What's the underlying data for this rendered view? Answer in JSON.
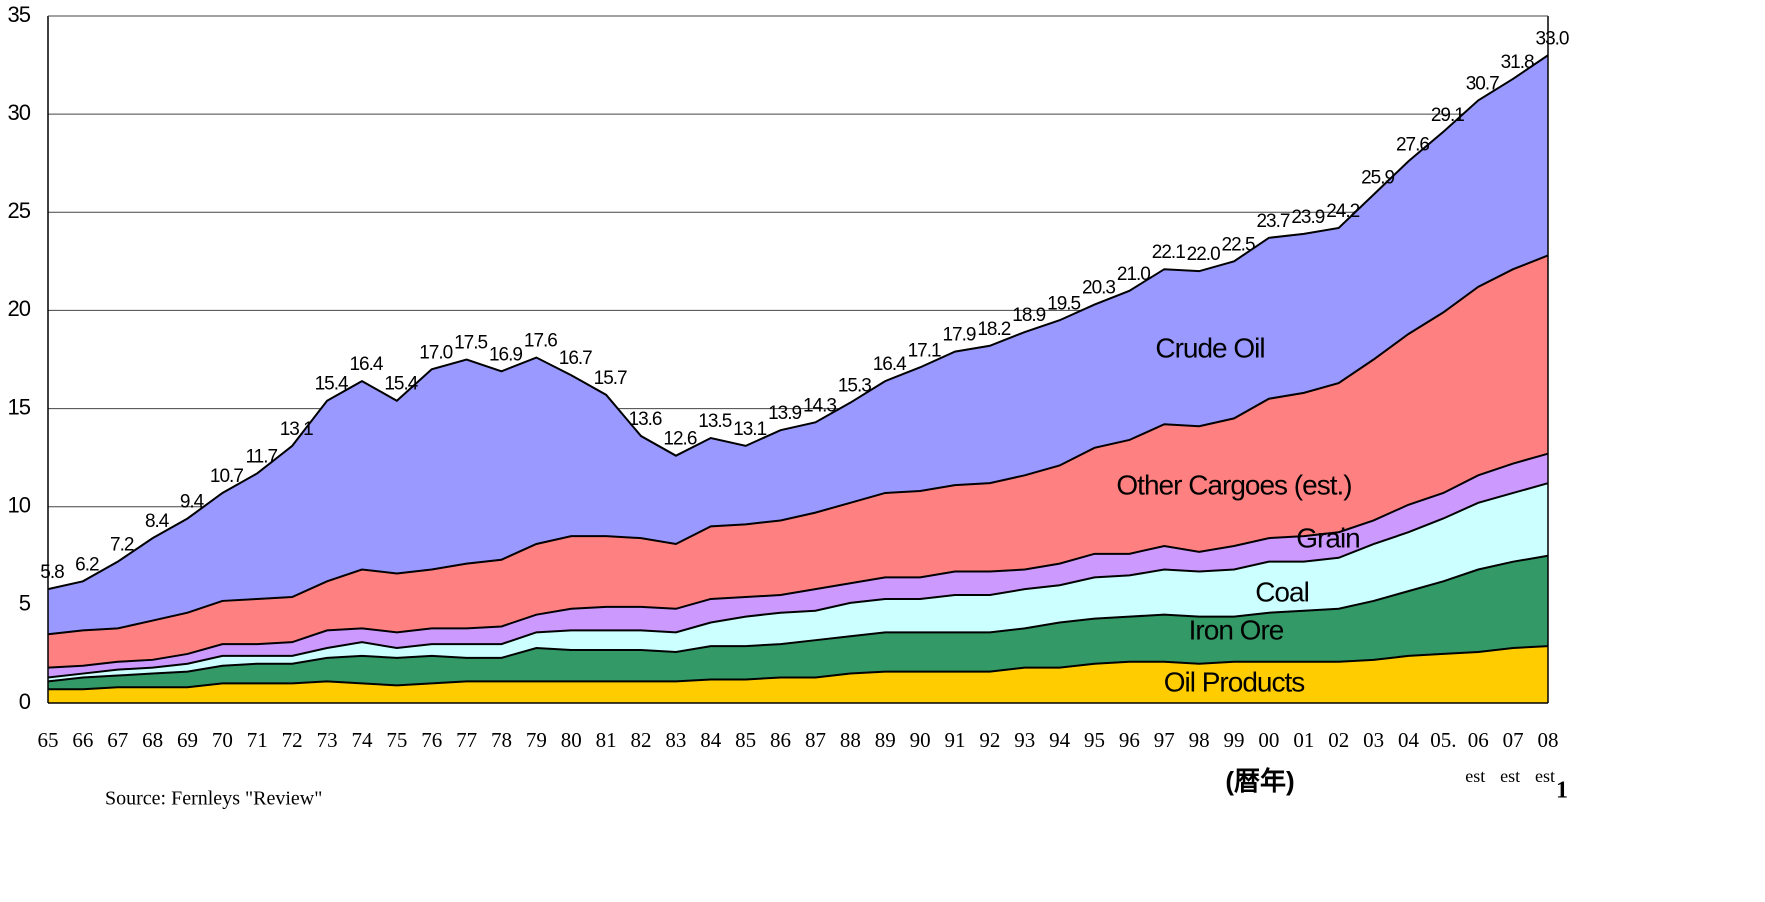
{
  "chart_data": {
    "type": "stacked_area",
    "categories": [
      "65",
      "66",
      "67",
      "68",
      "69",
      "70",
      "71",
      "72",
      "73",
      "74",
      "75",
      "76",
      "77",
      "78",
      "79",
      "80",
      "81",
      "82",
      "83",
      "84",
      "85",
      "86",
      "87",
      "88",
      "89",
      "90",
      "91",
      "92",
      "93",
      "94",
      "95",
      "96",
      "97",
      "98",
      "99",
      "00",
      "01",
      "02",
      "03",
      "04",
      "05.",
      "06",
      "07",
      "08"
    ],
    "x_notes": [
      null,
      null,
      null,
      null,
      null,
      null,
      null,
      null,
      null,
      null,
      null,
      null,
      null,
      null,
      null,
      null,
      null,
      null,
      null,
      null,
      null,
      null,
      null,
      null,
      null,
      null,
      null,
      null,
      null,
      null,
      null,
      null,
      null,
      null,
      null,
      null,
      null,
      null,
      null,
      null,
      null,
      "est",
      "est",
      "est"
    ],
    "x_label": "(暦年)",
    "source": "Source: Fernleys \"Review\"",
    "page_number": "1",
    "ylim": [
      0,
      35
    ],
    "yticks": [
      0,
      5,
      10,
      15,
      20,
      25,
      30,
      35
    ],
    "grid": true,
    "series": [
      {
        "name": "Oil Products",
        "color": "#ffcc00",
        "values": [
          0.7,
          0.7,
          0.8,
          0.8,
          0.8,
          1.0,
          1.0,
          1.0,
          1.1,
          1.0,
          0.9,
          1.0,
          1.1,
          1.1,
          1.1,
          1.1,
          1.1,
          1.1,
          1.1,
          1.2,
          1.2,
          1.3,
          1.3,
          1.5,
          1.6,
          1.6,
          1.6,
          1.6,
          1.8,
          1.8,
          2.0,
          2.1,
          2.1,
          2.0,
          2.1,
          2.1,
          2.1,
          2.1,
          2.2,
          2.4,
          2.5,
          2.6,
          2.8,
          2.9
        ]
      },
      {
        "name": "Iron Ore",
        "color": "#339966",
        "values": [
          0.4,
          0.6,
          0.6,
          0.7,
          0.8,
          0.9,
          1.0,
          1.0,
          1.2,
          1.4,
          1.4,
          1.4,
          1.2,
          1.2,
          1.7,
          1.6,
          1.6,
          1.6,
          1.5,
          1.7,
          1.7,
          1.7,
          1.9,
          1.9,
          2.0,
          2.0,
          2.0,
          2.0,
          2.0,
          2.3,
          2.3,
          2.3,
          2.4,
          2.4,
          2.3,
          2.5,
          2.6,
          2.7,
          3.0,
          3.3,
          3.7,
          4.2,
          4.4,
          4.6
        ]
      },
      {
        "name": "Coal",
        "color": "#ccffff",
        "values": [
          0.2,
          0.2,
          0.3,
          0.3,
          0.4,
          0.5,
          0.4,
          0.4,
          0.5,
          0.7,
          0.5,
          0.6,
          0.7,
          0.7,
          0.8,
          1.0,
          1.0,
          1.0,
          1.0,
          1.2,
          1.5,
          1.6,
          1.5,
          1.7,
          1.7,
          1.7,
          1.9,
          1.9,
          2.0,
          1.9,
          2.1,
          2.1,
          2.3,
          2.3,
          2.4,
          2.6,
          2.5,
          2.6,
          2.9,
          3.0,
          3.2,
          3.4,
          3.5,
          3.7
        ]
      },
      {
        "name": "Grain",
        "color": "#cc99ff",
        "values": [
          0.5,
          0.4,
          0.4,
          0.4,
          0.5,
          0.6,
          0.6,
          0.7,
          0.9,
          0.7,
          0.8,
          0.8,
          0.8,
          0.9,
          0.9,
          1.1,
          1.2,
          1.2,
          1.2,
          1.2,
          1.0,
          0.9,
          1.1,
          1.0,
          1.1,
          1.1,
          1.2,
          1.2,
          1.0,
          1.1,
          1.2,
          1.1,
          1.2,
          1.0,
          1.2,
          1.2,
          1.3,
          1.3,
          1.2,
          1.4,
          1.3,
          1.4,
          1.5,
          1.5
        ]
      },
      {
        "name": "Other Cargoes (est.)",
        "color": "#ff8080",
        "values": [
          1.7,
          1.8,
          1.7,
          2.0,
          2.1,
          2.2,
          2.3,
          2.3,
          2.5,
          3.0,
          3.0,
          3.0,
          3.3,
          3.4,
          3.6,
          3.7,
          3.6,
          3.5,
          3.3,
          3.7,
          3.7,
          3.8,
          3.9,
          4.1,
          4.3,
          4.4,
          4.4,
          4.5,
          4.8,
          5.0,
          5.4,
          5.8,
          6.2,
          6.4,
          6.5,
          7.1,
          7.3,
          7.6,
          8.2,
          8.7,
          9.2,
          9.6,
          9.9,
          10.1
        ]
      },
      {
        "name": "Crude Oil",
        "color": "#9999ff",
        "values": [
          2.3,
          2.5,
          3.4,
          4.2,
          4.8,
          5.5,
          6.4,
          7.7,
          9.2,
          9.6,
          8.8,
          10.2,
          10.4,
          9.6,
          9.5,
          8.2,
          7.2,
          5.2,
          4.5,
          4.5,
          4.0,
          4.6,
          4.6,
          5.1,
          5.7,
          6.3,
          6.8,
          7.0,
          7.3,
          7.4,
          7.3,
          7.6,
          7.9,
          7.9,
          8.0,
          8.2,
          8.1,
          7.9,
          8.4,
          8.8,
          9.2,
          9.5,
          9.7,
          10.2
        ]
      }
    ],
    "totals": [
      5.8,
      6.2,
      7.2,
      8.4,
      9.4,
      10.7,
      11.7,
      13.1,
      15.4,
      16.4,
      15.4,
      17.0,
      17.5,
      16.9,
      17.6,
      16.7,
      15.7,
      13.6,
      12.6,
      13.5,
      13.1,
      13.9,
      14.3,
      15.3,
      16.4,
      17.1,
      17.9,
      18.2,
      18.9,
      19.5,
      20.3,
      21.0,
      22.1,
      22.0,
      22.5,
      23.7,
      23.9,
      24.2,
      25.9,
      27.6,
      29.1,
      30.7,
      31.8,
      33.0
    ],
    "total_labels": [
      "5.8",
      "6.2",
      "7.2",
      "8.4",
      "9.4",
      "10.7",
      "11.7",
      "13.1",
      "15.4",
      "16.4",
      "15.4",
      "17.0",
      "17.5",
      "16.9",
      "17.6",
      "16.7",
      "15.7",
      "13.6",
      "12.6",
      "13.5",
      "13.1",
      "13.9",
      "14.3",
      "15.3",
      "16.4",
      "17.1",
      "17.9",
      "18.2",
      "18.9",
      "19.5",
      "20.3",
      "21.0",
      "22.1",
      "22.0",
      "22.5",
      "23.7",
      "23.9",
      "24.2",
      "25.9",
      "27.6",
      "29.1",
      "30.7",
      "31.8",
      "33.0"
    ]
  }
}
